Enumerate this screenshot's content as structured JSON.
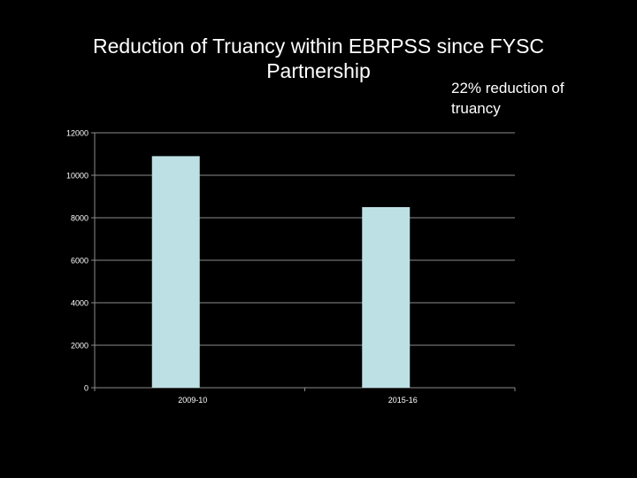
{
  "slide": {
    "title_line1": "Reduction of Truancy within EBRPSS since FYSC",
    "title_line2": "Partnership",
    "annotation_line1": "22% reduction of",
    "annotation_line2": "truancy"
  },
  "chart_data": {
    "type": "bar",
    "categories": [
      "2009-10",
      "2015-16"
    ],
    "values": [
      10900,
      8500
    ],
    "ylim": [
      0,
      12000
    ],
    "yticks": [
      0,
      2000,
      4000,
      6000,
      8000,
      10000,
      12000
    ],
    "grid": true,
    "legend": "none",
    "colors": {
      "bar": "#bde0e4",
      "grid": "#8c8c8c",
      "axis": "#8c8c8c",
      "text": "#ffffff",
      "background": "#000000"
    }
  }
}
